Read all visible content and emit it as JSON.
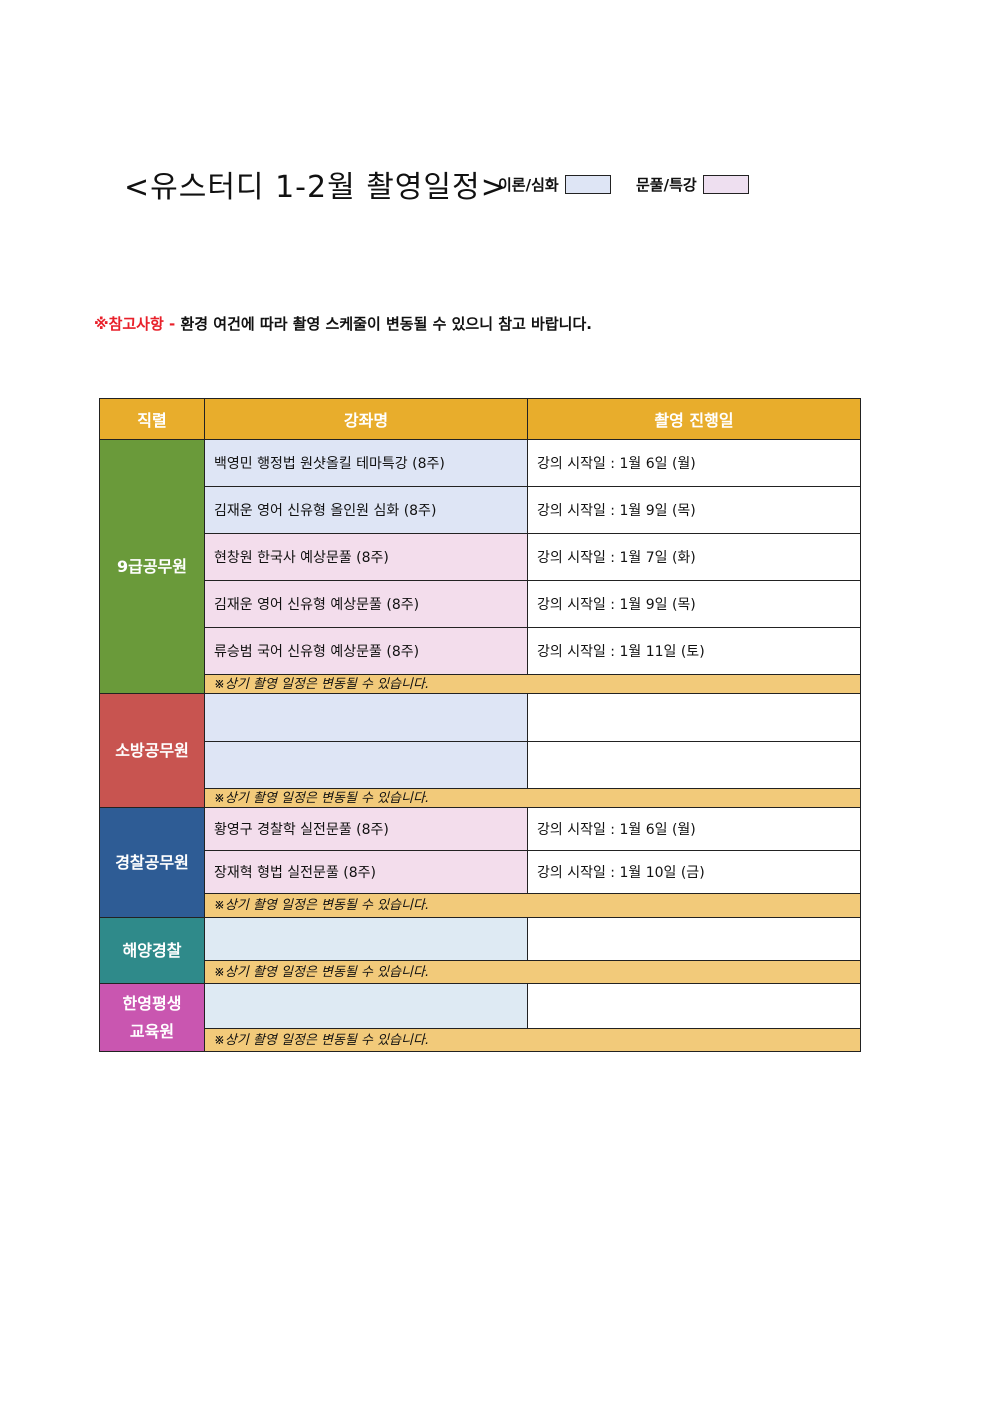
{
  "title": "<유스터디 1-2월 촬영일정>",
  "legend": [
    {
      "label": "이론/심화",
      "color": "#DEE5F5"
    },
    {
      "label": "문풀/특강",
      "color": "#EEDFF0"
    }
  ],
  "notice": {
    "label": "※참고사항 -",
    "text": " 환경 여건에 따라 촬영 스케줄이 변동될 수 있으니 참고 바랍니다."
  },
  "table": {
    "headers": [
      "직렬",
      "강좌명",
      "촬영 진행일"
    ],
    "note": "※상기 촬영 일정은 변동될 수 있습니다.",
    "groups": [
      {
        "category": "9급공무원",
        "color": "#6A9A3A",
        "rows": [
          {
            "course": "백영민 행정법 원샷올킬 테마특강 (8주)",
            "date": "강의 시작일 : 1월 6일 (월)",
            "type": "blue"
          },
          {
            "course": "김재운 영어 신유형 올인원 심화 (8주)",
            "date": "강의 시작일 : 1월 9일 (목)",
            "type": "blue"
          },
          {
            "course": "현창원 한국사 예상문풀 (8주)",
            "date": "강의 시작일 : 1월 7일 (화)",
            "type": "pink"
          },
          {
            "course": "김재운 영어 신유형 예상문풀 (8주)",
            "date": "강의 시작일 : 1월 9일 (목)",
            "type": "pink"
          },
          {
            "course": "류승범 국어 신유형 예상문풀 (8주)",
            "date": "강의 시작일 : 1월 11일 (토)",
            "type": "pink"
          }
        ]
      },
      {
        "category": "소방공무원",
        "color": "#C85450",
        "rows": [
          {
            "course": "",
            "date": ""
          },
          {
            "course": "",
            "date": ""
          }
        ]
      },
      {
        "category": "경찰공무원",
        "color": "#2E5C95",
        "rows": [
          {
            "course": "황영구 경찰학 실전문풀 (8주)",
            "date": "강의 시작일 : 1월 6일 (월)"
          },
          {
            "course": "장재혁 형법 실전문풀 (8주)",
            "date": "강의 시작일 : 1월 10일 (금)"
          }
        ]
      },
      {
        "category": "해양경찰",
        "color": "#2F8A8A",
        "rows": [
          {
            "course": "",
            "date": ""
          }
        ]
      },
      {
        "category": "한영평생 교육원",
        "color": "#C956B0",
        "rows": [
          {
            "course": "",
            "date": ""
          }
        ]
      }
    ]
  }
}
